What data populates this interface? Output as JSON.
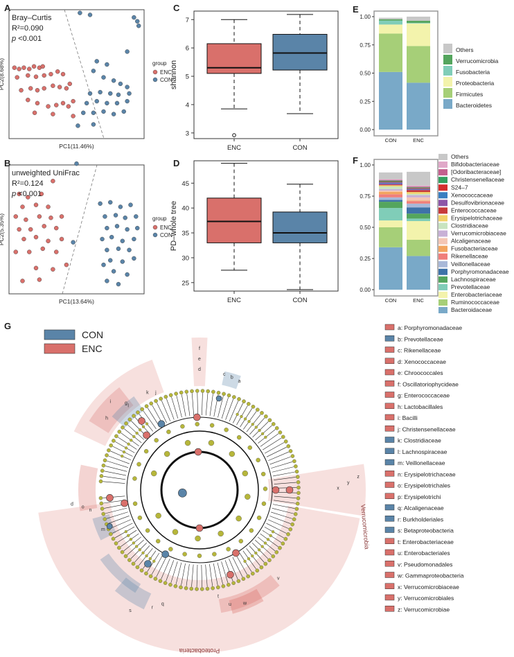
{
  "chart_data": [
    {
      "panel": "A",
      "type": "scatter",
      "title": "Bray–Curtis",
      "stat_r2": "R²=0.090",
      "stat_p_label": "p",
      "stat_p_value": "<0.001",
      "xlabel": "PC1(11.46%)",
      "ylabel": "PC2(8.68%)",
      "xlim": [
        -1,
        1
      ],
      "ylim": [
        -1,
        1
      ],
      "legend_title": "group",
      "legend": [
        {
          "name": "ENC",
          "color": "#d9706b"
        },
        {
          "name": "CON",
          "color": "#5a84a8"
        }
      ],
      "series": [
        {
          "name": "ENC",
          "points": [
            [
              -0.92,
              0.1
            ],
            [
              -0.85,
              0.08
            ],
            [
              -0.78,
              0.1
            ],
            [
              -0.7,
              0.08
            ],
            [
              -0.63,
              0.12
            ],
            [
              -0.55,
              0.1
            ],
            [
              -0.5,
              0.12
            ],
            [
              -0.88,
              -0.05
            ],
            [
              -0.72,
              -0.02
            ],
            [
              -0.6,
              -0.04
            ],
            [
              -0.48,
              -0.02
            ],
            [
              -0.38,
              0.0
            ],
            [
              -0.28,
              0.04
            ],
            [
              -0.82,
              -0.25
            ],
            [
              -0.68,
              -0.22
            ],
            [
              -0.58,
              -0.25
            ],
            [
              -0.48,
              -0.22
            ],
            [
              -0.35,
              -0.18
            ],
            [
              -0.25,
              -0.2
            ],
            [
              -0.15,
              -0.22
            ],
            [
              -0.1,
              -0.15
            ],
            [
              -0.72,
              -0.4
            ],
            [
              -0.58,
              -0.45
            ],
            [
              -0.42,
              -0.5
            ],
            [
              -0.3,
              -0.48
            ],
            [
              -0.2,
              -0.45
            ],
            [
              -0.12,
              -0.5
            ],
            [
              -0.05,
              -0.42
            ],
            [
              -0.62,
              -0.6
            ],
            [
              -0.35,
              -0.62
            ],
            [
              -0.05,
              -0.65
            ],
            [
              -0.2,
              0.0
            ]
          ]
        },
        {
          "name": "CON",
          "points": [
            [
              0.05,
              0.95
            ],
            [
              0.2,
              0.92
            ],
            [
              0.85,
              0.88
            ],
            [
              0.9,
              0.82
            ],
            [
              0.92,
              0.75
            ],
            [
              0.75,
              0.35
            ],
            [
              0.3,
              0.2
            ],
            [
              0.45,
              0.15
            ],
            [
              0.25,
              0.05
            ],
            [
              0.4,
              -0.05
            ],
            [
              0.55,
              -0.1
            ],
            [
              0.65,
              -0.15
            ],
            [
              0.75,
              -0.2
            ],
            [
              0.2,
              -0.3
            ],
            [
              0.35,
              -0.28
            ],
            [
              0.5,
              -0.3
            ],
            [
              0.62,
              -0.32
            ],
            [
              0.78,
              -0.3
            ],
            [
              0.15,
              -0.45
            ],
            [
              0.3,
              -0.42
            ],
            [
              0.45,
              -0.45
            ],
            [
              0.6,
              -0.45
            ],
            [
              0.75,
              -0.42
            ],
            [
              0.1,
              -0.6
            ],
            [
              0.25,
              -0.6
            ],
            [
              0.4,
              -0.58
            ],
            [
              0.55,
              -0.62
            ],
            [
              0.7,
              -0.58
            ],
            [
              0.02,
              -0.8
            ],
            [
              0.25,
              -0.78
            ]
          ]
        }
      ]
    },
    {
      "panel": "B",
      "type": "scatter",
      "title": "unweighted UniFrac",
      "stat_r2": "R²=0.124",
      "stat_p_label": "p",
      "stat_p_value": "<0.001",
      "xlabel": "PC1(13.64%)",
      "ylabel": "PC2(5.35%)",
      "xlim": [
        -1,
        1
      ],
      "ylim": [
        -1,
        1
      ],
      "legend_title": "group",
      "legend": [
        {
          "name": "ENC",
          "color": "#d9706b"
        },
        {
          "name": "CON",
          "color": "#5a84a8"
        }
      ],
      "series": [
        {
          "name": "ENC",
          "points": [
            [
              -0.35,
              0.75
            ],
            [
              -0.85,
              0.55
            ],
            [
              -0.72,
              0.5
            ],
            [
              -0.52,
              0.55
            ],
            [
              -0.8,
              0.35
            ],
            [
              -0.6,
              0.38
            ],
            [
              -0.42,
              0.35
            ],
            [
              -0.9,
              0.2
            ],
            [
              -0.75,
              0.15
            ],
            [
              -0.55,
              0.2
            ],
            [
              -0.38,
              0.18
            ],
            [
              -0.22,
              0.2
            ],
            [
              -0.85,
              0.0
            ],
            [
              -0.68,
              0.0
            ],
            [
              -0.48,
              0.05
            ],
            [
              -0.3,
              0.02
            ],
            [
              -0.78,
              -0.15
            ],
            [
              -0.6,
              -0.12
            ],
            [
              -0.42,
              -0.18
            ],
            [
              -0.22,
              -0.15
            ],
            [
              -0.7,
              -0.35
            ],
            [
              -0.5,
              -0.3
            ],
            [
              -0.3,
              -0.35
            ],
            [
              -0.6,
              -0.6
            ],
            [
              -0.35,
              -0.62
            ],
            [
              -0.15,
              -0.55
            ],
            [
              -0.8,
              -0.8
            ],
            [
              -0.55,
              -0.78
            ],
            [
              -0.9,
              -0.35
            ]
          ]
        },
        {
          "name": "CON",
          "points": [
            [
              0.0,
              1.02
            ],
            [
              0.35,
              0.4
            ],
            [
              0.5,
              0.42
            ],
            [
              0.65,
              0.35
            ],
            [
              0.8,
              0.38
            ],
            [
              0.42,
              0.2
            ],
            [
              0.58,
              0.22
            ],
            [
              0.72,
              0.18
            ],
            [
              0.88,
              0.2
            ],
            [
              0.45,
              0.02
            ],
            [
              0.6,
              0.05
            ],
            [
              0.75,
              0.0
            ],
            [
              0.9,
              0.02
            ],
            [
              0.38,
              -0.15
            ],
            [
              0.52,
              -0.12
            ],
            [
              0.68,
              -0.18
            ],
            [
              0.85,
              -0.15
            ],
            [
              0.45,
              -0.32
            ],
            [
              0.62,
              -0.3
            ],
            [
              0.78,
              -0.32
            ],
            [
              0.5,
              -0.48
            ],
            [
              0.68,
              -0.5
            ],
            [
              0.85,
              -0.45
            ],
            [
              0.55,
              -0.65
            ],
            [
              0.75,
              -0.7
            ],
            [
              0.45,
              -0.8
            ],
            [
              0.62,
              -0.85
            ],
            [
              -0.05,
              -0.2
            ],
            [
              0.4,
              -0.55
            ]
          ]
        }
      ]
    },
    {
      "panel": "C",
      "type": "box",
      "ylabel": "shannon",
      "ylim": [
        2.8,
        7.3
      ],
      "yticks": [
        3,
        4,
        5,
        6,
        7
      ],
      "categories": [
        "ENC",
        "CON"
      ],
      "boxes": [
        {
          "name": "ENC",
          "min": 3.85,
          "q1": 5.1,
          "median": 5.3,
          "q3": 6.15,
          "max": 7.0,
          "outliers": [
            2.92
          ],
          "color": "#d9706b"
        },
        {
          "name": "CON",
          "min": 3.68,
          "q1": 5.22,
          "median": 5.82,
          "q3": 6.48,
          "max": 7.18,
          "outliers": [],
          "color": "#5a84a8"
        }
      ]
    },
    {
      "panel": "D",
      "type": "box",
      "ylabel": "PD–whole tree",
      "ylim": [
        23.3,
        49.5
      ],
      "yticks": [
        25,
        30,
        35,
        40,
        45
      ],
      "categories": [
        "ENC",
        "CON"
      ],
      "boxes": [
        {
          "name": "ENC",
          "min": 27.5,
          "q1": 33.0,
          "median": 37.3,
          "q3": 42.0,
          "max": 49.0,
          "outliers": [],
          "color": "#d9706b"
        },
        {
          "name": "CON",
          "min": 23.6,
          "q1": 33.0,
          "median": 35.0,
          "q3": 39.2,
          "max": 44.8,
          "outliers": [],
          "color": "#5a84a8"
        }
      ]
    },
    {
      "panel": "E",
      "type": "bar",
      "stacked": true,
      "categories": [
        "CON",
        "ENC"
      ],
      "ylim": [
        0,
        1
      ],
      "yticks": [
        "0.00",
        "0.25",
        "0.50",
        "0.75",
        "1.00"
      ],
      "series": [
        {
          "name": "Bacteroidetes",
          "color": "#79a9c8",
          "values": [
            0.51,
            0.415
          ]
        },
        {
          "name": "Firmicutes",
          "color": "#a6cf78",
          "values": [
            0.34,
            0.325
          ]
        },
        {
          "name": "Proteobacteria",
          "color": "#f3f3ac",
          "values": [
            0.08,
            0.2
          ]
        },
        {
          "name": "Fusobacteria",
          "color": "#80cdb8",
          "values": [
            0.035,
            0.005
          ]
        },
        {
          "name": "Verrucomicrobia",
          "color": "#54a55d",
          "values": [
            0.012,
            0.018
          ]
        },
        {
          "name": "Others",
          "color": "#c8c8c8",
          "values": [
            0.013,
            0.037
          ]
        }
      ]
    },
    {
      "panel": "F",
      "type": "bar",
      "stacked": true,
      "categories": [
        "CON",
        "ENC"
      ],
      "ylim": [
        0,
        1
      ],
      "yticks": [
        "0.00",
        "0.25",
        "0.50",
        "0.75",
        "1.00"
      ],
      "series": [
        {
          "name": "Bacteroidaceae",
          "color": "#79a9c8",
          "values": [
            0.34,
            0.27
          ]
        },
        {
          "name": "Ruminococcaceae",
          "color": "#a6cf78",
          "values": [
            0.16,
            0.13
          ]
        },
        {
          "name": "Enterobacteriaceae",
          "color": "#f3f3ac",
          "values": [
            0.055,
            0.15
          ]
        },
        {
          "name": "Prevotellaceae",
          "color": "#80cdb8",
          "values": [
            0.1,
            0.02
          ]
        },
        {
          "name": "Lachnospiraceae",
          "color": "#54a55d",
          "values": [
            0.05,
            0.04
          ]
        },
        {
          "name": "Porphyromonadaceae",
          "color": "#3e72a8",
          "values": [
            0.015,
            0.05
          ]
        },
        {
          "name": "Veillonellaceae",
          "color": "#a8b8d8",
          "values": [
            0.02,
            0.03
          ]
        },
        {
          "name": "Rikenellaceae",
          "color": "#f07e7a",
          "values": [
            0.025,
            0.02
          ]
        },
        {
          "name": "Fusobacteriaceae",
          "color": "#f3a45e",
          "values": [
            0.02,
            0.005
          ]
        },
        {
          "name": "Alcaligenaceae",
          "color": "#f4c6b4",
          "values": [
            0.01,
            0.025
          ]
        },
        {
          "name": "Verrucomicrobiaceae",
          "color": "#c7b0d6",
          "values": [
            0.012,
            0.018
          ]
        },
        {
          "name": "Clostridiaceae",
          "color": "#c8e4c0",
          "values": [
            0.02,
            0.01
          ]
        },
        {
          "name": "Erysipelotrichaceae",
          "color": "#f2d26a",
          "values": [
            0.01,
            0.015
          ]
        },
        {
          "name": "Enterococcaceae",
          "color": "#c73a3a",
          "values": [
            0.005,
            0.015
          ]
        },
        {
          "name": "Desulfovibrionaceae",
          "color": "#8c55a8",
          "values": [
            0.01,
            0.005
          ]
        },
        {
          "name": "Xenococcaceae",
          "color": "#3a7ec0",
          "values": [
            0.008,
            0.006
          ]
        },
        {
          "name": "S24–7",
          "color": "#d42e2e",
          "values": [
            0.006,
            0.006
          ]
        },
        {
          "name": "Christensenellaceae",
          "color": "#34a060",
          "values": [
            0.008,
            0.006
          ]
        },
        {
          "name": "[Odoribacteraceae]",
          "color": "#c4608e",
          "values": [
            0.006,
            0.006
          ]
        },
        {
          "name": "Bifidobacteriaceae",
          "color": "#e0a8c8",
          "values": [
            0.005,
            0.008
          ]
        },
        {
          "name": "Others",
          "color": "#c8c8c8",
          "values": [
            0.055,
            0.11
          ]
        }
      ]
    }
  ],
  "panel_labels": {
    "A": "A",
    "B": "B",
    "C": "C",
    "D": "D",
    "E": "E",
    "F": "F",
    "G": "G"
  },
  "cladogram": {
    "legend": [
      {
        "name": "CON",
        "color": "#5a84a8"
      },
      {
        "name": "ENC",
        "color": "#d9706b"
      }
    ],
    "clade_labels": [
      "Verrucomicrobia",
      "Proteobacteria"
    ],
    "key": [
      {
        "letter": "a",
        "name": "Porphyromonadaceae",
        "group": "ENC"
      },
      {
        "letter": "b",
        "name": "Prevotellaceae",
        "group": "CON"
      },
      {
        "letter": "c",
        "name": "Rikenellaceae",
        "group": "ENC"
      },
      {
        "letter": "d",
        "name": "Xenococcaceae",
        "group": "ENC"
      },
      {
        "letter": "e",
        "name": "Chroococcales",
        "group": "ENC"
      },
      {
        "letter": "f",
        "name": "Oscillatoriophycideae",
        "group": "ENC"
      },
      {
        "letter": "g",
        "name": "Enterococcaceae",
        "group": "ENC"
      },
      {
        "letter": "h",
        "name": "Lactobacillales",
        "group": "ENC"
      },
      {
        "letter": "i",
        "name": "Bacilli",
        "group": "ENC"
      },
      {
        "letter": "j",
        "name": "Christensenellaceae",
        "group": "ENC"
      },
      {
        "letter": "k",
        "name": "Clostridiaceae",
        "group": "CON"
      },
      {
        "letter": "l",
        "name": "Lachnospiraceae",
        "group": "CON"
      },
      {
        "letter": "m",
        "name": "Veillonellaceae",
        "group": "CON"
      },
      {
        "letter": "n",
        "name": "Erysipelotrichaceae",
        "group": "ENC"
      },
      {
        "letter": "o",
        "name": "Erysipelotrichales",
        "group": "ENC"
      },
      {
        "letter": "p",
        "name": "Erysipelotrichi",
        "group": "ENC"
      },
      {
        "letter": "q",
        "name": "Alcaligenaceae",
        "group": "CON"
      },
      {
        "letter": "r",
        "name": "Burkholderiales",
        "group": "CON"
      },
      {
        "letter": "s",
        "name": "Betaproteobacteria",
        "group": "CON"
      },
      {
        "letter": "t",
        "name": "Enterobacteriaceae",
        "group": "ENC"
      },
      {
        "letter": "u",
        "name": "Enterobacteriales",
        "group": "ENC"
      },
      {
        "letter": "v",
        "name": "Pseudomonadales",
        "group": "ENC"
      },
      {
        "letter": "w",
        "name": "Gammaproteobacteria",
        "group": "ENC"
      },
      {
        "letter": "x",
        "name": "Verrucomicrobiaceae",
        "group": "ENC"
      },
      {
        "letter": "y",
        "name": "Verrucomicrobiales",
        "group": "ENC"
      },
      {
        "letter": "z",
        "name": "Verrucomicrobiae",
        "group": "ENC"
      }
    ]
  }
}
